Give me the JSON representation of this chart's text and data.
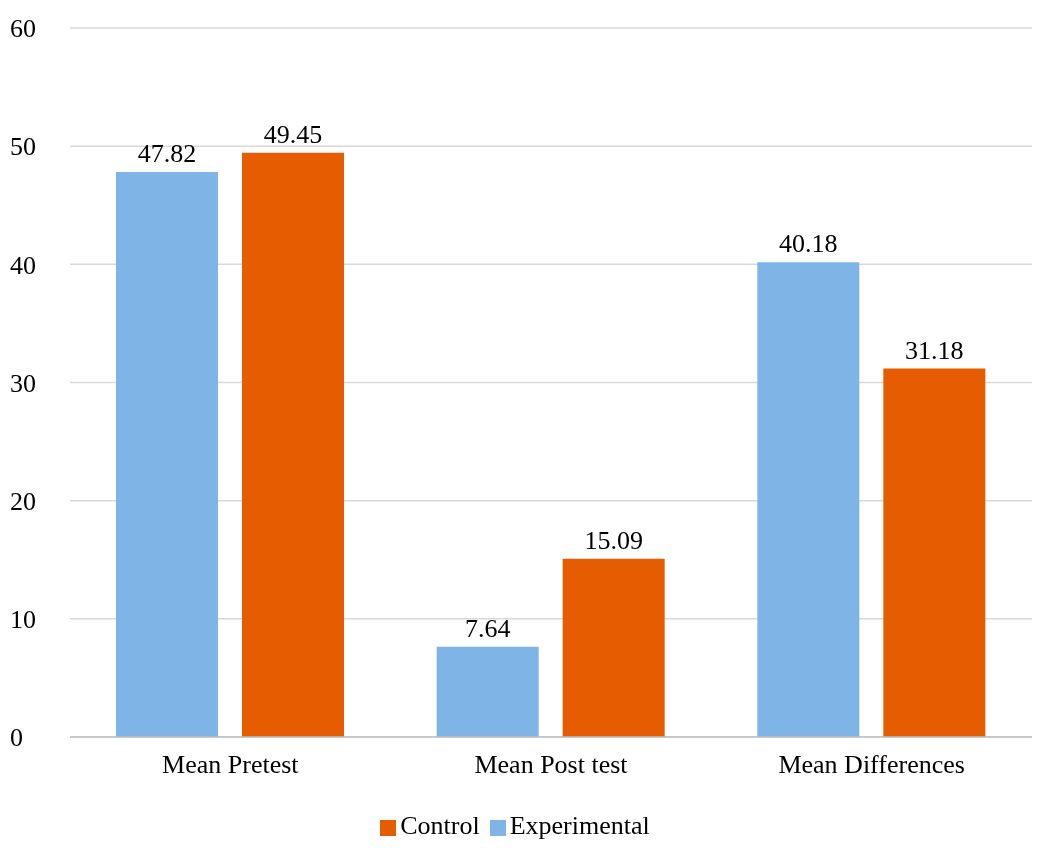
{
  "chart_data": {
    "type": "bar",
    "categories": [
      "Mean Pretest",
      "Mean Post test",
      "Mean Differences"
    ],
    "series": [
      {
        "name": "Experimental",
        "color": "#7fb4e6",
        "values": [
          47.82,
          7.64,
          40.18
        ]
      },
      {
        "name": "Control",
        "color": "#e65c00",
        "values": [
          49.45,
          15.09,
          31.18
        ]
      }
    ],
    "ylim": [
      0,
      60
    ],
    "yticks": [
      0,
      10,
      20,
      30,
      40,
      50,
      60
    ],
    "grid": "y",
    "legend": "bottom",
    "data_labels": true
  }
}
